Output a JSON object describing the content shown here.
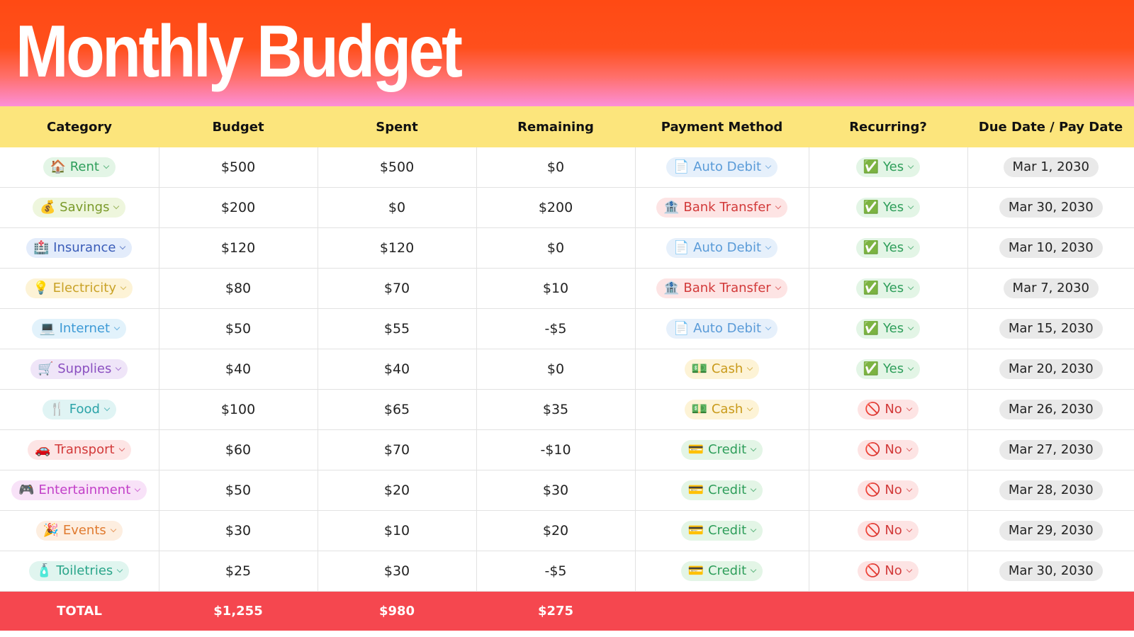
{
  "header": {
    "title": "Monthly Budget"
  },
  "table": {
    "columns": [
      "Category",
      "Budget",
      "Spent",
      "Remaining",
      "Payment Method",
      "Recurring?",
      "Due Date / Pay Date"
    ],
    "rows": [
      [
        "🏠 Rent",
        "$500",
        "$500",
        "$0",
        "📄 Auto Debit",
        "✅ Yes",
        "Mar 1, 2030"
      ],
      [
        "💰 Savings",
        "$200",
        "$0",
        "$200",
        "🏦 Bank Transfer",
        "✅ Yes",
        "Mar 30, 2030"
      ],
      [
        "🏥 Insurance",
        "$120",
        "$120",
        "$0",
        "📄 Auto Debit",
        "✅ Yes",
        "Mar 10, 2030"
      ],
      [
        "💡 Electricity",
        "$80",
        "$70",
        "$10",
        "🏦 Bank Transfer",
        "✅ Yes",
        "Mar 7, 2030"
      ],
      [
        "💻 Internet",
        "$50",
        "$55",
        "-$5",
        "📄 Auto Debit",
        "✅ Yes",
        "Mar 15, 2030"
      ],
      [
        "🛒 Supplies",
        "$40",
        "$40",
        "$0",
        "💵 Cash",
        "✅ Yes",
        "Mar 20, 2030"
      ],
      [
        "🍴 Food",
        "$100",
        "$65",
        "$35",
        "💵 Cash",
        "🚫 No",
        "Mar 26, 2030"
      ],
      [
        "🚗 Transport",
        "$60",
        "$70",
        "-$10",
        "💳 Credit",
        "🚫 No",
        "Mar 27, 2030"
      ],
      [
        "🎮 Entertainment",
        "$50",
        "$20",
        "$30",
        "💳 Credit",
        "🚫 No",
        "Mar 28, 2030"
      ],
      [
        "🎉 Events",
        "$30",
        "$10",
        "$20",
        "💳 Credit",
        "🚫 No",
        "Mar 29, 2030"
      ],
      [
        "🧴 Toiletries",
        "$25",
        "$30",
        "-$5",
        "💳 Credit",
        "🚫 No",
        "Mar 30, 2030"
      ]
    ],
    "total": [
      "TOTAL",
      "$1,255",
      "$980",
      "$275"
    ]
  }
}
